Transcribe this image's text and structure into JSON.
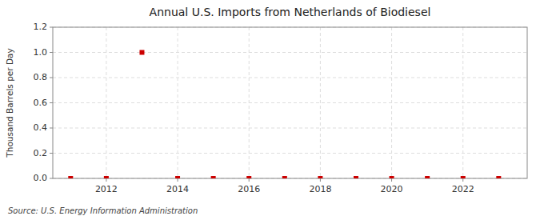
{
  "chart_data": {
    "type": "scatter",
    "title": "Annual U.S. Imports from Netherlands of Biodiesel",
    "y_label": "Thousand Barrels per Day",
    "source": "Source: U.S. Energy Information Administration",
    "x": [
      2011,
      2012,
      2013,
      2014,
      2015,
      2016,
      2017,
      2018,
      2019,
      2020,
      2021,
      2022,
      2023
    ],
    "values": [
      0.0,
      0.0,
      1.0,
      0.0,
      0.0,
      0.0,
      0.0,
      0.0,
      0.0,
      0.0,
      0.0,
      0.0,
      0.0
    ],
    "color": "#cc0000",
    "marker": "square",
    "xlim": [
      2010.5,
      2023.8
    ],
    "ylim": [
      0.0,
      1.2
    ],
    "xticks": [
      2012,
      2014,
      2016,
      2018,
      2020,
      2022
    ],
    "yticks": [
      {
        "value": 0.0,
        "label": "0.0"
      },
      0.2,
      0.4,
      0.6,
      0.8,
      {
        "value": 1.0,
        "label": "1.0"
      },
      1.2
    ],
    "grid": true
  }
}
